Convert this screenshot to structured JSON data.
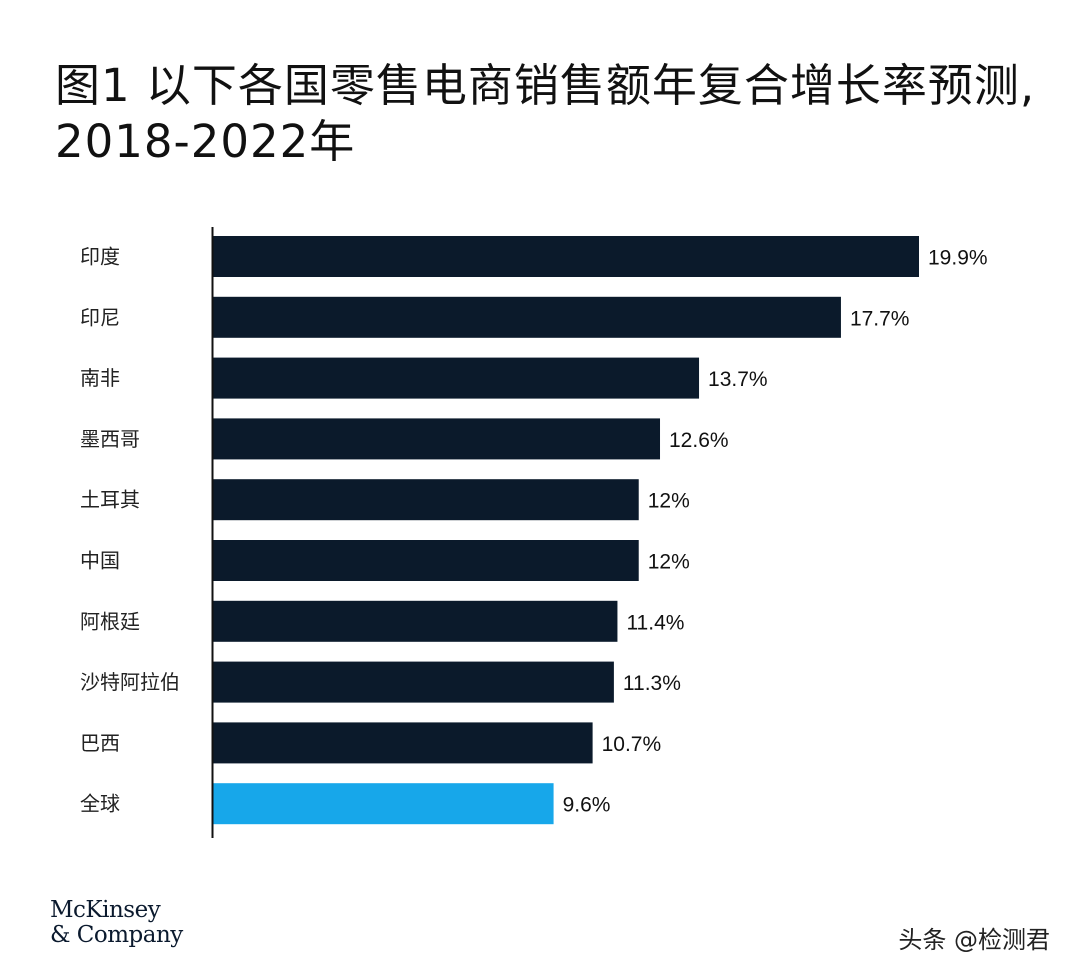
{
  "title": "图1 以下各国零售电商销售额年复合增长率预测, 2018-2022年",
  "chart_data": {
    "type": "bar",
    "orientation": "horizontal",
    "title": "图1 以下各国零售电商销售额年复合增长率预测, 2018-2022年",
    "categories": [
      "印度",
      "印尼",
      "南非",
      "墨西哥",
      "土耳其",
      "中国",
      "阿根廷",
      "沙特阿拉伯",
      "巴西",
      "全球"
    ],
    "values": [
      19.9,
      17.7,
      13.7,
      12.6,
      12,
      12,
      11.4,
      11.3,
      10.7,
      9.6
    ],
    "value_labels": [
      "19.9%",
      "17.7%",
      "13.7%",
      "12.6%",
      "12%",
      "12%",
      "11.4%",
      "11.3%",
      "10.7%",
      "9.6%"
    ],
    "xlim": [
      0,
      19.9
    ],
    "grid": false,
    "colors": {
      "default": "#0b1a2b",
      "highlight": "#17a7ea",
      "highlight_category": "全球"
    }
  },
  "logo": {
    "line1": "McKinsey",
    "line2": "& Company"
  },
  "watermark": "头条 @检测君"
}
